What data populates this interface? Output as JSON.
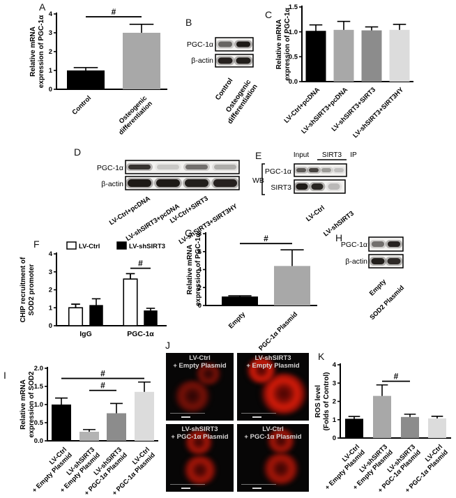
{
  "panels": {
    "A": {
      "letter": "A"
    },
    "B": {
      "letter": "B"
    },
    "C": {
      "letter": "C"
    },
    "D": {
      "letter": "D"
    },
    "E": {
      "letter": "E"
    },
    "F": {
      "letter": "F"
    },
    "G": {
      "letter": "G"
    },
    "H": {
      "letter": "H"
    },
    "I": {
      "letter": "I"
    },
    "J": {
      "letter": "J"
    },
    "K": {
      "letter": "K"
    }
  },
  "chart_data": [
    {
      "id": "A",
      "type": "bar",
      "title": "",
      "ylabel": "Relative mRNA\nexpression of PGC-1α",
      "ylim": [
        0,
        4
      ],
      "yticks": [
        "0",
        "1",
        "2",
        "3",
        "4"
      ],
      "categories": [
        "Control",
        "Osteogenic\ndifferentiation"
      ],
      "values": [
        1.0,
        3.0
      ],
      "errors": [
        0.15,
        0.45
      ],
      "colors": [
        "#000000",
        "#a8a8a8"
      ],
      "sig": [
        {
          "from": 0,
          "to": 1,
          "y": 3.85,
          "label": "#"
        }
      ]
    },
    {
      "id": "C",
      "type": "bar",
      "title": "",
      "ylabel": "Relative mRNA\nexpression of PGC-1α",
      "ylim": [
        0,
        1.5
      ],
      "yticks": [
        "0.0",
        "0.5",
        "1.0",
        "1.5"
      ],
      "categories": [
        "LV-Ctrl+pcDNA",
        "LV-shSIRT3+pcDNA",
        "LV-shSIRT3+SIRT3",
        "LV-shSIRT3+SIRT3HY"
      ],
      "values": [
        1.02,
        1.04,
        1.03,
        1.04
      ],
      "errors": [
        0.12,
        0.17,
        0.07,
        0.11
      ],
      "colors": [
        "#000000",
        "#a8a8a8",
        "#8c8c8c",
        "#dcdcdc"
      ],
      "sig": []
    },
    {
      "id": "F",
      "type": "grouped-bar",
      "title": "",
      "ylabel": "CHIP recruitment of\nSOD2 promoter",
      "ylim": [
        0,
        4
      ],
      "yticks": [
        "0",
        "1",
        "2",
        "3",
        "4"
      ],
      "categories": [
        "IgG",
        "PGC-1α"
      ],
      "series": [
        {
          "name": "LV-Ctrl",
          "color": "#ffffff",
          "values": [
            1.0,
            2.6
          ],
          "errors": [
            0.2,
            0.3
          ]
        },
        {
          "name": "LV-shSIRT3",
          "color": "#000000",
          "values": [
            1.15,
            0.85
          ],
          "errors": [
            0.35,
            0.12
          ]
        }
      ],
      "legend_position": "top",
      "sig": [
        {
          "from": 2,
          "to": 3,
          "y": 3.2,
          "label": "#"
        }
      ]
    },
    {
      "id": "G",
      "type": "bar",
      "title": "",
      "ylabel": "Relative mRNA\nexpression of PGC-1α",
      "ylim": [
        0,
        8
      ],
      "yticks": [
        "0",
        "2",
        "4",
        "6",
        "8"
      ],
      "categories": [
        "Empty",
        "PGC-1α Plasmid"
      ],
      "values": [
        1.0,
        4.4
      ],
      "errors": [
        0.08,
        1.8
      ],
      "colors": [
        "#000000",
        "#a8a8a8"
      ],
      "sig": [
        {
          "from": 0,
          "to": 1,
          "y": 6.9,
          "label": "#"
        }
      ]
    },
    {
      "id": "I",
      "type": "bar",
      "title": "",
      "ylabel": "Relative mRNA\nexpression of SOD2",
      "ylim": [
        0,
        2
      ],
      "yticks": [
        "0.0",
        "0.5",
        "1.0",
        "1.5",
        "2.0"
      ],
      "categories": [
        "LV-Ctrl\n+ Empty Plasmid",
        "LV-shSIRT3\n+ Empty Plasmid",
        "LV-shSIRT3\n+ PGC-1α Plasmid",
        "LV-Ctrl\n+ PGC-1α Plasmid"
      ],
      "values": [
        1.0,
        0.25,
        0.76,
        1.35
      ],
      "errors": [
        0.18,
        0.06,
        0.27,
        0.27
      ],
      "colors": [
        "#000000",
        "#b3b3b3",
        "#8c8c8c",
        "#dcdcdc"
      ],
      "sig": [
        {
          "from": 0,
          "to": 3,
          "y": 1.72,
          "label": "#"
        },
        {
          "from": 1,
          "to": 2,
          "y": 1.39,
          "label": "#"
        }
      ]
    },
    {
      "id": "K",
      "type": "bar",
      "title": "",
      "ylabel": "ROS level\n(Folds of Control)",
      "ylim": [
        0,
        4
      ],
      "yticks": [
        "0",
        "1",
        "2",
        "3",
        "4"
      ],
      "categories": [
        "LV-Ctrl\n+ Empty Plasmid",
        "LV-shSIRT3\n+ Empty Plasmid",
        "LV-shSIRT3\n+ PGC-1α Plasmid",
        "LV-Ctrl\n+ PGC-1α Plasmid"
      ],
      "values": [
        1.05,
        2.3,
        1.15,
        1.07
      ],
      "errors": [
        0.13,
        0.6,
        0.15,
        0.12
      ],
      "colors": [
        "#000000",
        "#a8a8a8",
        "#8c8c8c",
        "#dcdcdc"
      ],
      "sig": [
        {
          "from": 1,
          "to": 2,
          "y": 3.1,
          "label": "#"
        }
      ]
    }
  ],
  "blots": {
    "B": {
      "rows": [
        {
          "label": "PGC-1α",
          "bands": [
            0.55,
            0.95
          ]
        },
        {
          "label": "β-actin",
          "bands": [
            0.9,
            0.92
          ]
        }
      ],
      "lanes": [
        "Control",
        "Osteogenic\ndifferentiation"
      ]
    },
    "D": {
      "rows": [
        {
          "label": "PGC-1α",
          "bands": [
            0.8,
            0.15,
            0.5,
            0.25
          ]
        },
        {
          "label": "β-actin",
          "bands": [
            0.95,
            0.95,
            0.92,
            0.9
          ]
        }
      ],
      "lanes": [
        "LV-Ctrl+pcDNA",
        "LV-shSIRT3+pcDNA",
        "LV-Ctrl+SIRT3",
        "LV-shSIRT3+SIRT3HY"
      ]
    },
    "E": {
      "header": [
        "Input",
        "SIRT3",
        "IP"
      ],
      "wb_label": "WB",
      "rows": [
        {
          "label": "PGC-1α",
          "bands": [
            0.6,
            0.72,
            0.32,
            0.18
          ]
        },
        {
          "label": "SIRT3",
          "bands": [
            0.95,
            0.88,
            0.2,
            0
          ]
        }
      ],
      "lanes": [
        "LV-Ctrl",
        "LV-shSIRT3"
      ]
    },
    "H": {
      "rows": [
        {
          "label": "PGC-1α",
          "bands": [
            0.5,
            0.9
          ]
        },
        {
          "label": "β-actin",
          "bands": [
            0.92,
            0.85
          ]
        }
      ],
      "lanes": [
        "Empty",
        "SOD2 Plasmid"
      ]
    }
  },
  "microscopy": {
    "stain_color": "#cc1100",
    "images": [
      {
        "line1": "LV-Ctrl",
        "line2": "+ Empty Plasmid",
        "intensity": "dim"
      },
      {
        "line1": "LV-shSIRT3",
        "line2": "+ Empty Plasmid",
        "intensity": "bright"
      },
      {
        "line1": "LV-shSIRT3",
        "line2": "+ PGC-1α Plasmid",
        "intensity": "medium"
      },
      {
        "line1": "LV-Ctrl",
        "line2": "+ PGC-1α Plasmid",
        "intensity": "medium"
      }
    ]
  }
}
